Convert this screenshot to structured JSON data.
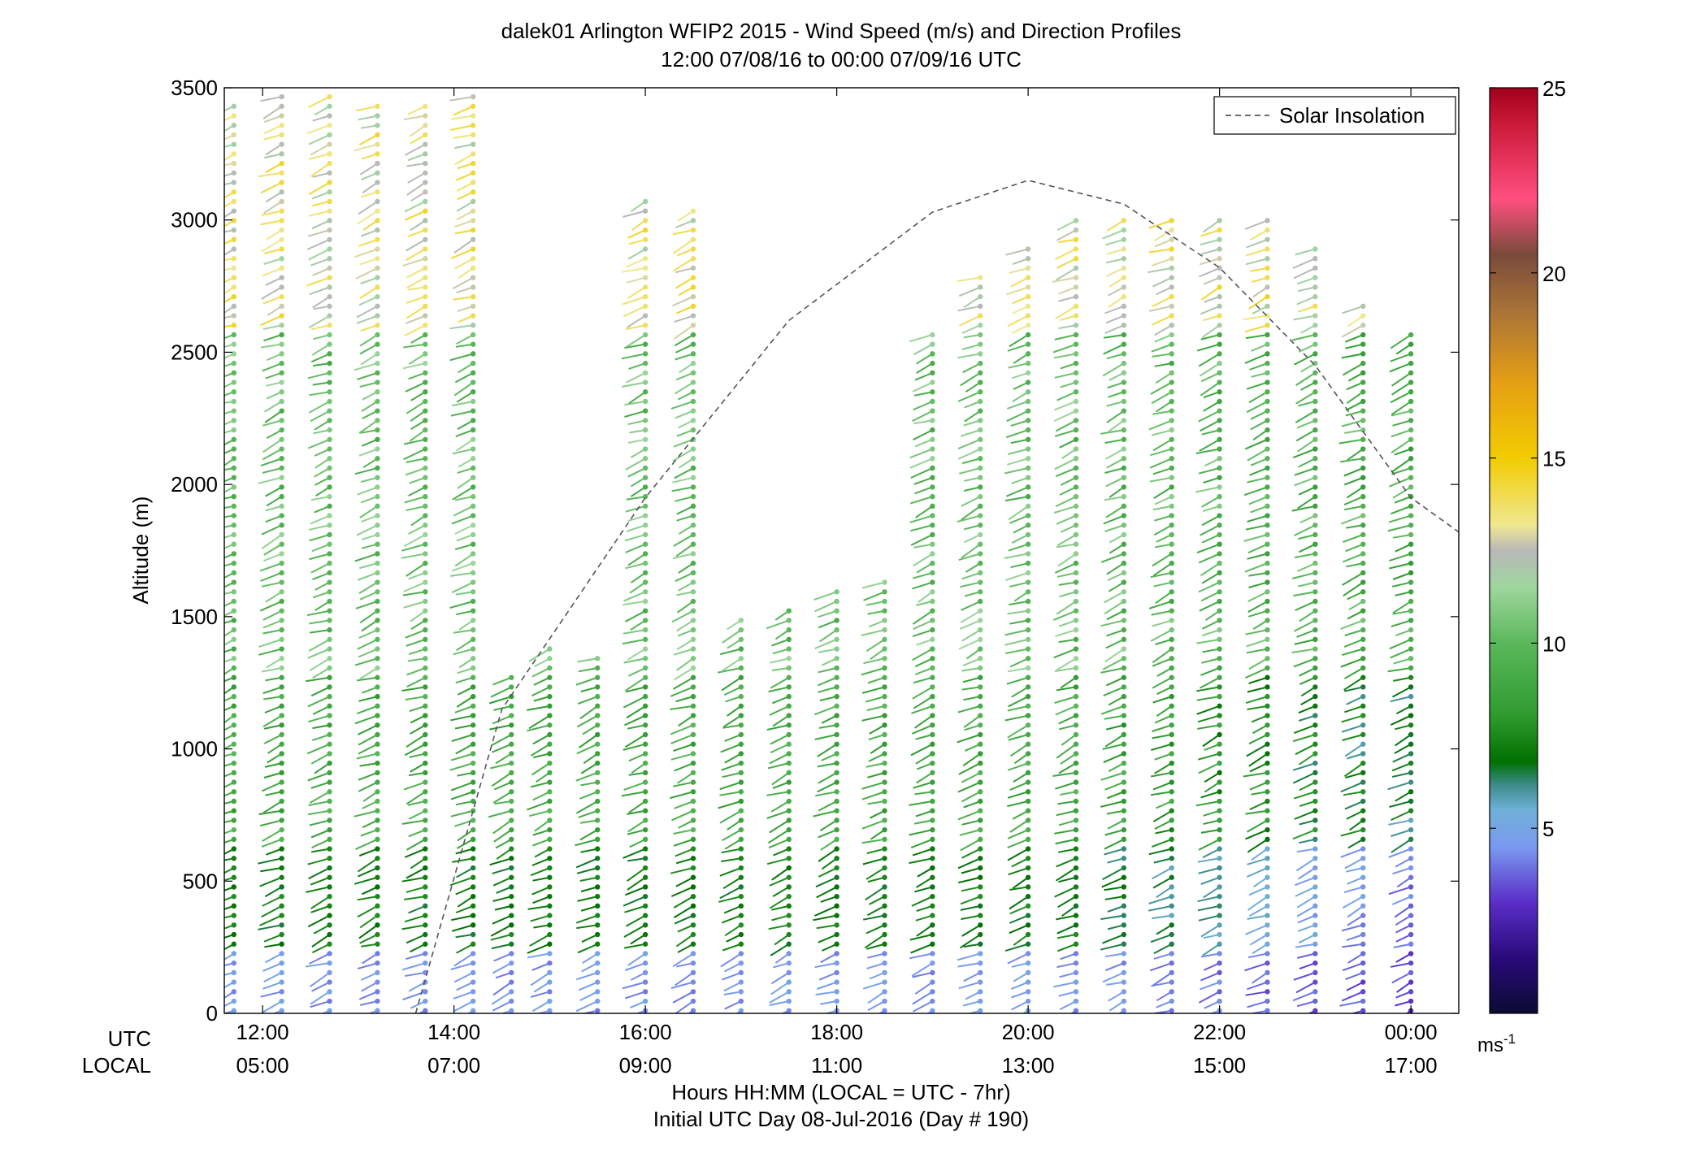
{
  "title_line1": "dalek01 Arlington WFIP2 2015 - Wind Speed (m/s) and Direction Profiles",
  "title_line2": "12:00 07/08/16 to 00:00 07/09/16  UTC",
  "ylabel": "Altitude (m)",
  "xlabel_line1": "Hours HH:MM  (LOCAL = UTC - 7hr)",
  "xlabel_line2": "Initial UTC Day 08-Jul-2016 (Day # 190)",
  "row_label_utc": "UTC",
  "row_label_local": "LOCAL",
  "colorbar_unit": "ms",
  "colorbar_unit_exp": "-1",
  "legend": {
    "label": "Solar Insolation",
    "color": "#555555"
  },
  "chart_data": {
    "type": "scatter",
    "title": "dalek01 Arlington WFIP2 2015 - Wind Speed (m/s) and Direction Profiles",
    "subtitle": "12:00 07/08/16 to 00:00 07/09/16  UTC",
    "xlabel": "Hours HH:MM  (LOCAL = UTC - 7hr)",
    "ylabel": "Altitude (m)",
    "x_range_utc_hours": [
      11.6,
      24.5
    ],
    "ylim": [
      0,
      3500
    ],
    "utc_ticks": [
      {
        "h": 12,
        "label": "12:00"
      },
      {
        "h": 14,
        "label": "14:00"
      },
      {
        "h": 16,
        "label": "16:00"
      },
      {
        "h": 18,
        "label": "18:00"
      },
      {
        "h": 20,
        "label": "20:00"
      },
      {
        "h": 22,
        "label": "22:00"
      },
      {
        "h": 24,
        "label": "00:00"
      }
    ],
    "local_ticks": [
      "05:00",
      "07:00",
      "09:00",
      "11:00",
      "13:00",
      "15:00",
      "17:00"
    ],
    "y_ticks": [
      0,
      500,
      1000,
      1500,
      2000,
      2500,
      3000,
      3500
    ],
    "colorbar": {
      "range": [
        0,
        25
      ],
      "ticks": [
        5,
        10,
        15,
        20,
        25
      ],
      "stops": [
        {
          "v": 0,
          "c": "#0b0b33"
        },
        {
          "v": 1.5,
          "c": "#2a0a7a"
        },
        {
          "v": 3,
          "c": "#5a2ec8"
        },
        {
          "v": 4.5,
          "c": "#7a9af0"
        },
        {
          "v": 5.5,
          "c": "#6fb0d8"
        },
        {
          "v": 6.2,
          "c": "#3a8a84"
        },
        {
          "v": 6.8,
          "c": "#007000"
        },
        {
          "v": 8,
          "c": "#2e9a2e"
        },
        {
          "v": 10,
          "c": "#5ab85a"
        },
        {
          "v": 11.5,
          "c": "#9ed69e"
        },
        {
          "v": 12.5,
          "c": "#b8b8b8"
        },
        {
          "v": 13.2,
          "c": "#f0e890"
        },
        {
          "v": 15,
          "c": "#f2cc00"
        },
        {
          "v": 17,
          "c": "#e6a014"
        },
        {
          "v": 19,
          "c": "#a87238"
        },
        {
          "v": 20.5,
          "c": "#7a4a3a"
        },
        {
          "v": 22,
          "c": "#ff4f80"
        },
        {
          "v": 24,
          "c": "#cc1a3a"
        },
        {
          "v": 25,
          "c": "#a0001c"
        }
      ]
    },
    "solar_insolation": {
      "style": "dashed",
      "points": [
        [
          13.6,
          0
        ],
        [
          14.5,
          1150
        ],
        [
          16,
          1950
        ],
        [
          17.5,
          2620
        ],
        [
          19,
          3030
        ],
        [
          20,
          3150
        ],
        [
          21,
          3060
        ],
        [
          22,
          2820
        ],
        [
          23,
          2450
        ],
        [
          24,
          1950
        ],
        [
          24.5,
          1820
        ]
      ]
    },
    "wind_profiles": {
      "note": "one barb per (time, altitude); dot = wind speed color, line = direction",
      "times_utc": [
        11.7,
        12.2,
        12.7,
        13.2,
        13.7,
        14.2,
        14.6,
        15.0,
        15.5,
        16.0,
        16.5,
        17.0,
        17.5,
        18.0,
        18.5,
        19.0,
        19.5,
        20.0,
        20.5,
        21.0,
        21.5,
        22.0,
        22.5,
        23.0,
        23.5,
        24.0
      ],
      "max_altitude_m": [
        3450,
        3470,
        3470,
        3450,
        3460,
        3480,
        1300,
        1400,
        1350,
        3100,
        3050,
        1500,
        1550,
        1600,
        1650,
        2600,
        2800,
        2900,
        3000,
        3000,
        3000,
        3000,
        3000,
        2900,
        2700,
        2600
      ],
      "speed_profiles_ms": [
        {
          "layer": "0-250 m",
          "speed": 4,
          "color": "blue/purple"
        },
        {
          "layer": "250-600 m",
          "speed": 6.5,
          "color": "dark green"
        },
        {
          "layer": "600-1300 m",
          "speed": 8,
          "color": "green"
        },
        {
          "layer": "1300-2600 m",
          "speed": 9,
          "color": "green"
        },
        {
          "layer": "2600-3500 m",
          "speed": 12.5,
          "color": "light green / yellow"
        }
      ]
    }
  }
}
